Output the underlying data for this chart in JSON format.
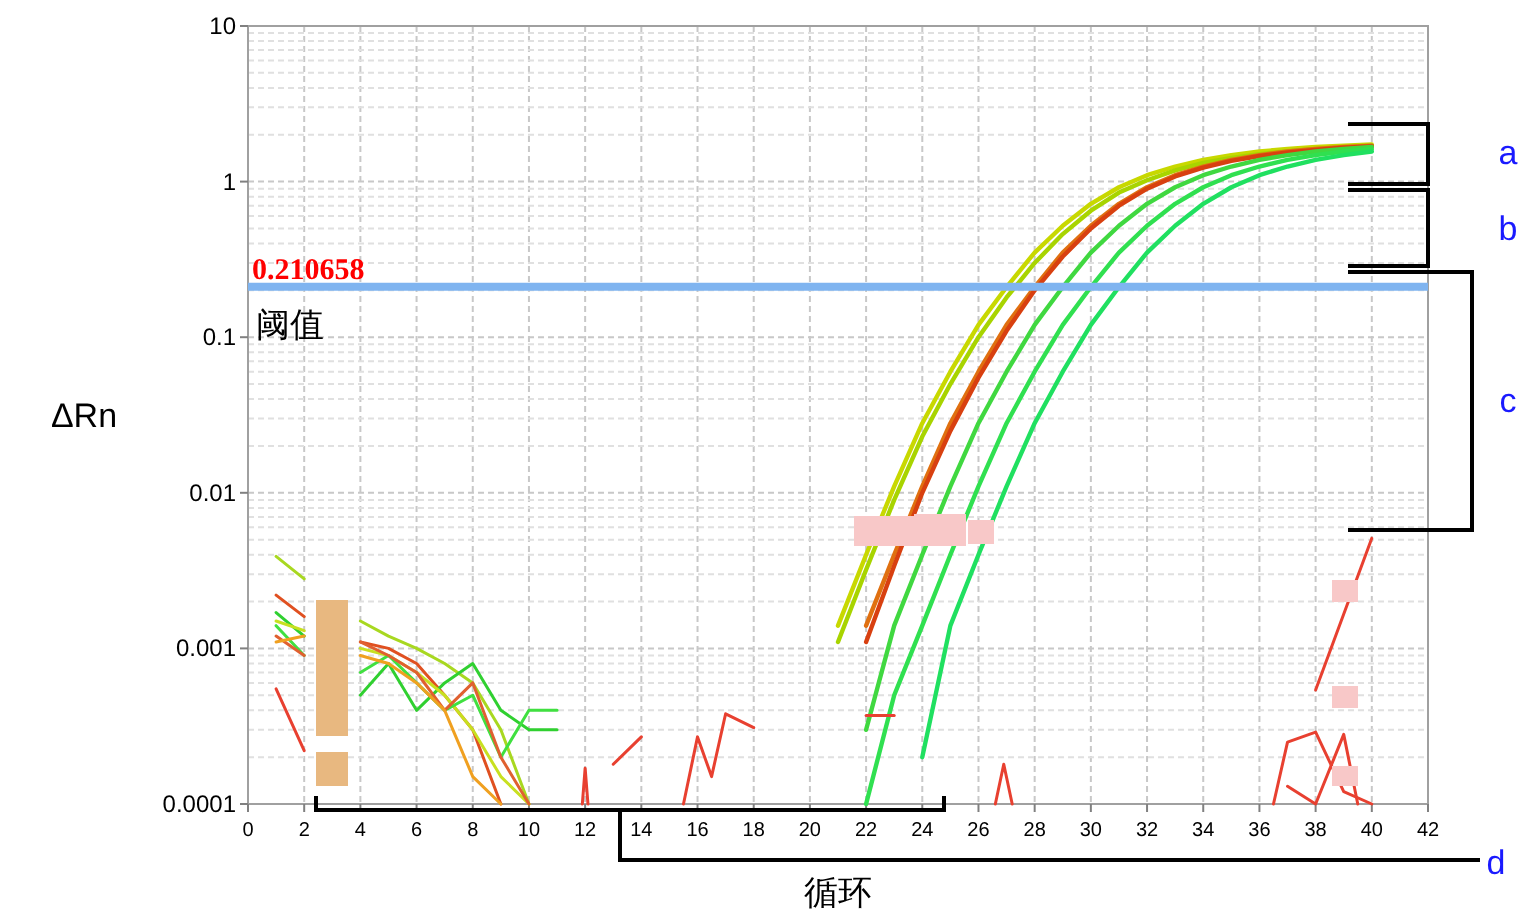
{
  "chart_data": {
    "type": "line",
    "log": "y",
    "grid": true,
    "xlabel": "循环",
    "ylabel": "ΔRn",
    "xlim": [
      0,
      42
    ],
    "xticks": [
      0,
      2,
      4,
      6,
      8,
      10,
      12,
      14,
      16,
      18,
      20,
      22,
      24,
      26,
      28,
      30,
      32,
      34,
      36,
      38,
      40,
      42
    ],
    "ylim": [
      0.0001,
      10
    ],
    "yticks": [
      0.0001,
      0.001,
      0.01,
      0.1,
      1,
      10
    ],
    "ref_lines": [
      {
        "axis": "y",
        "value": 0.210658,
        "label": "0.210658",
        "color": "#7fb4f0"
      }
    ],
    "annotations": [
      "阈值",
      "a",
      "b",
      "c",
      "d"
    ],
    "series": [
      {
        "color": "#c8d800",
        "x": [
          21,
          22,
          23,
          24,
          25,
          26,
          27,
          28,
          29,
          30,
          31,
          32,
          33,
          34,
          35,
          36,
          37,
          38,
          39,
          40
        ],
        "values": [
          0.0014,
          0.004,
          0.011,
          0.028,
          0.06,
          0.12,
          0.21,
          0.35,
          0.52,
          0.72,
          0.92,
          1.1,
          1.25,
          1.38,
          1.48,
          1.56,
          1.62,
          1.67,
          1.7,
          1.73
        ]
      },
      {
        "color": "#a8d400",
        "x": [
          21,
          22,
          23,
          24,
          25,
          26,
          27,
          28,
          29,
          30,
          31,
          32,
          33,
          34,
          35,
          36,
          37,
          38,
          39,
          40
        ],
        "values": [
          0.0011,
          0.0032,
          0.009,
          0.023,
          0.05,
          0.1,
          0.18,
          0.3,
          0.46,
          0.65,
          0.85,
          1.02,
          1.18,
          1.32,
          1.42,
          1.5,
          1.57,
          1.62,
          1.66,
          1.7
        ]
      },
      {
        "color": "#e07010",
        "x": [
          22,
          23,
          24,
          25,
          26,
          27,
          28,
          29,
          30,
          31,
          32,
          33,
          34,
          35,
          36,
          37,
          38,
          39,
          40
        ],
        "values": [
          0.0014,
          0.004,
          0.011,
          0.028,
          0.06,
          0.12,
          0.21,
          0.35,
          0.52,
          0.72,
          0.92,
          1.1,
          1.25,
          1.38,
          1.48,
          1.56,
          1.62,
          1.67,
          1.7
        ]
      },
      {
        "color": "#d84010",
        "x": [
          22,
          23,
          24,
          25,
          26,
          27,
          28,
          29,
          30,
          31,
          32,
          33,
          34,
          35,
          36,
          37,
          38,
          39,
          40
        ],
        "values": [
          0.0011,
          0.0034,
          0.01,
          0.025,
          0.055,
          0.11,
          0.2,
          0.33,
          0.5,
          0.7,
          0.9,
          1.08,
          1.23,
          1.36,
          1.46,
          1.54,
          1.6,
          1.65,
          1.68
        ]
      },
      {
        "color": "#40d840",
        "x": [
          22,
          23,
          24,
          25,
          26,
          27,
          28,
          29,
          30,
          31,
          32,
          33,
          34,
          35,
          36,
          37,
          38,
          39,
          40
        ],
        "values": [
          0.0003,
          0.0014,
          0.004,
          0.011,
          0.028,
          0.06,
          0.12,
          0.21,
          0.35,
          0.52,
          0.72,
          0.92,
          1.1,
          1.25,
          1.38,
          1.48,
          1.56,
          1.62,
          1.67
        ]
      },
      {
        "color": "#30e050",
        "x": [
          22,
          23,
          24,
          25,
          26,
          27,
          28,
          29,
          30,
          31,
          32,
          33,
          34,
          35,
          36,
          37,
          38,
          39,
          40
        ],
        "values": [
          0.0001,
          0.0005,
          0.0014,
          0.004,
          0.011,
          0.028,
          0.06,
          0.12,
          0.21,
          0.35,
          0.52,
          0.72,
          0.92,
          1.1,
          1.25,
          1.38,
          1.48,
          1.56,
          1.62
        ]
      },
      {
        "color": "#20e060",
        "x": [
          24,
          25,
          26,
          27,
          28,
          29,
          30,
          31,
          32,
          33,
          34,
          35,
          36,
          37,
          38,
          39,
          40
        ],
        "values": [
          0.0002,
          0.0014,
          0.004,
          0.011,
          0.028,
          0.06,
          0.12,
          0.21,
          0.35,
          0.52,
          0.72,
          0.92,
          1.1,
          1.25,
          1.38,
          1.48,
          1.56
        ]
      },
      {
        "color": "#a8d820",
        "x": [
          1,
          2,
          3,
          4,
          5,
          6,
          7,
          8,
          9,
          10
        ],
        "values": [
          0.0039,
          0.0028,
          null,
          0.0015,
          0.0012,
          0.001,
          0.0008,
          0.0006,
          0.0003,
          0.0001
        ]
      },
      {
        "color": "#e05020",
        "x": [
          1,
          2,
          3,
          4,
          5,
          6,
          7,
          8,
          9
        ],
        "values": [
          0.0022,
          0.0016,
          null,
          0.0011,
          0.001,
          0.0008,
          0.0005,
          0.0003,
          0.0001
        ]
      },
      {
        "color": "#30d030",
        "x": [
          1,
          2,
          3,
          4,
          5,
          6,
          7,
          8,
          9,
          10,
          11
        ],
        "values": [
          0.0017,
          0.0012,
          null,
          0.0005,
          0.0008,
          0.0004,
          0.0006,
          0.0008,
          0.0004,
          0.0003,
          0.0003
        ]
      },
      {
        "color": "#c8e020",
        "x": [
          1,
          2,
          3,
          4,
          5,
          6,
          7,
          8,
          9,
          10
        ],
        "values": [
          0.0015,
          0.0013,
          null,
          0.001,
          0.0009,
          0.0007,
          0.0005,
          0.0003,
          0.00015,
          0.0001
        ]
      },
      {
        "color": "#40e040",
        "x": [
          1,
          2,
          3,
          4,
          5,
          6,
          7,
          8,
          9,
          10,
          11
        ],
        "values": [
          0.0014,
          0.0009,
          null,
          0.0007,
          0.0009,
          0.0006,
          0.0004,
          0.0005,
          0.0002,
          0.0004,
          0.0004
        ]
      },
      {
        "color": "#e06030",
        "x": [
          1,
          2,
          3,
          4,
          5,
          6,
          7,
          8,
          9,
          10
        ],
        "values": [
          0.0012,
          0.0009,
          null,
          0.0011,
          0.0009,
          0.0007,
          0.0004,
          0.0006,
          0.0002,
          0.0001
        ]
      },
      {
        "color": "#e84030",
        "x": [
          1,
          2
        ],
        "values": [
          0.00055,
          0.00022
        ]
      },
      {
        "color": "#f0a020",
        "x": [
          1,
          2,
          3,
          4,
          5,
          6,
          7,
          8,
          9
        ],
        "values": [
          0.0011,
          0.0012,
          null,
          0.0009,
          0.0008,
          0.0006,
          0.0004,
          0.00015,
          0.0001
        ]
      },
      {
        "color": "#e84030",
        "x": [
          13,
          14
        ],
        "values": [
          0.00018,
          0.00027
        ]
      },
      {
        "color": "#e84030",
        "x": [
          15.5,
          16,
          16.5,
          17,
          18
        ],
        "values": [
          0.0001,
          0.00027,
          0.00015,
          0.00038,
          0.00031
        ]
      },
      {
        "color": "#e84030",
        "x": [
          11.9,
          12,
          12.1
        ],
        "values": [
          0.0001,
          0.00017,
          0.0001
        ]
      },
      {
        "color": "#e84030",
        "x": [
          22,
          23
        ],
        "values": [
          0.00037,
          0.00037
        ]
      },
      {
        "color": "#e84030",
        "x": [
          26.6,
          26.9,
          27.2
        ],
        "values": [
          0.0001,
          0.00018,
          0.0001
        ]
      },
      {
        "color": "#e84030",
        "x": [
          36.5,
          37,
          38,
          39,
          40
        ],
        "values": [
          0.0001,
          0.00025,
          0.00029,
          0.00012,
          0.0001
        ]
      },
      {
        "color": "#e84030",
        "x": [
          37,
          38,
          39,
          39.5
        ],
        "values": [
          0.00013,
          0.0001,
          0.00028,
          0.0001
        ]
      },
      {
        "color": "#e84030",
        "x": [
          38,
          40
        ],
        "values": [
          0.00054,
          0.0051
        ]
      }
    ]
  }
}
